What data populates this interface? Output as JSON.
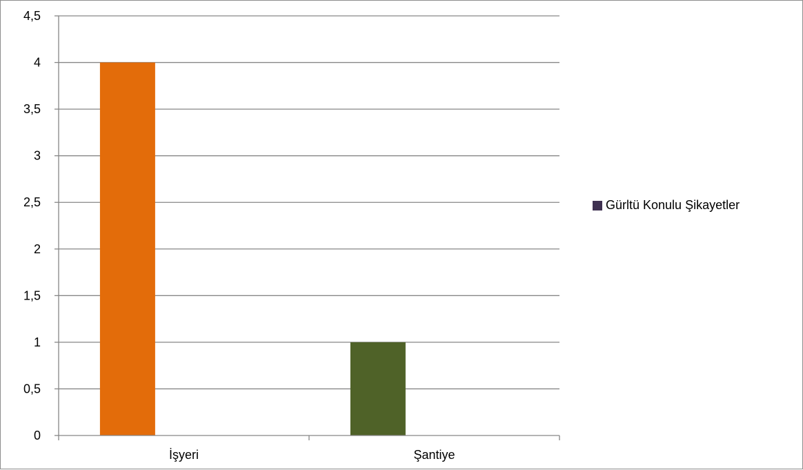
{
  "chart_data": {
    "type": "bar",
    "categories": [
      "İşyeri",
      "Şantiye"
    ],
    "series": [
      {
        "name": "Gürltü Konulu Şikayetler",
        "values": [
          4,
          1
        ],
        "colors": [
          "#e36c0a",
          "#4f6228"
        ]
      }
    ],
    "y_ticks": [
      "0",
      "0,5",
      "1",
      "1,5",
      "2",
      "2,5",
      "3",
      "3,5",
      "4",
      "4,5"
    ],
    "ylim": [
      0,
      4.5
    ],
    "grid": true,
    "legend_position": "right",
    "legend_swatch_color": "#3f3151",
    "gridline_color": "#868686",
    "axis_color": "#868686"
  }
}
